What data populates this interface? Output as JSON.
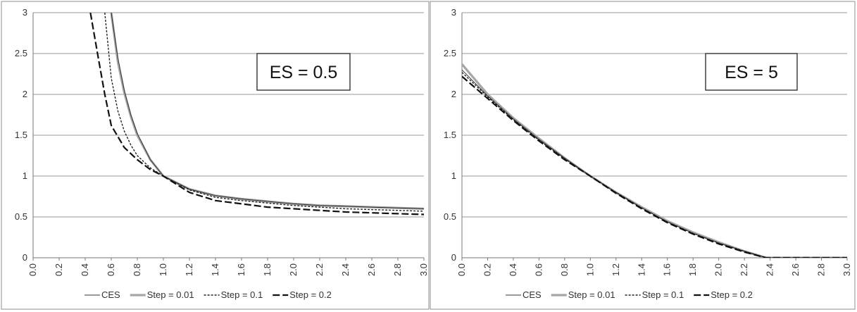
{
  "chart_data": [
    {
      "type": "line",
      "annotation": "ES = 0.5",
      "xlim": [
        0,
        3
      ],
      "ylim": [
        0,
        3
      ],
      "x_ticks": [
        "0.0",
        "0.2",
        "0.4",
        "0.6",
        "0.8",
        "1.0",
        "1.2",
        "1.4",
        "1.6",
        "1.8",
        "2.0",
        "2.2",
        "2.4",
        "2.6",
        "2.8",
        "3.0"
      ],
      "y_ticks": [
        "0",
        "0.5",
        "1",
        "1.5",
        "2",
        "2.5",
        "3"
      ],
      "grid": "horizontal",
      "legend_position": "bottom",
      "series": [
        {
          "name": "CES",
          "style": "thin-solid",
          "color": "#333333",
          "x": [
            0.6,
            0.65,
            0.7,
            0.75,
            0.8,
            0.9,
            1.0,
            1.2,
            1.4,
            1.6,
            1.8,
            2.0,
            2.2,
            2.4,
            2.6,
            2.8,
            3.0
          ],
          "y": [
            3.0,
            2.45,
            2.05,
            1.75,
            1.52,
            1.2,
            1.0,
            0.84,
            0.76,
            0.72,
            0.69,
            0.66,
            0.64,
            0.63,
            0.62,
            0.61,
            0.6
          ]
        },
        {
          "name": "Step = 0.01",
          "style": "thick-solid",
          "color": "#a6a6a6",
          "x": [
            0.6,
            0.65,
            0.7,
            0.75,
            0.8,
            0.9,
            1.0,
            1.2,
            1.4,
            1.6,
            1.8,
            2.0,
            2.2,
            2.4,
            2.6,
            2.8,
            3.0
          ],
          "y": [
            3.0,
            2.4,
            2.02,
            1.73,
            1.5,
            1.2,
            1.0,
            0.84,
            0.76,
            0.72,
            0.69,
            0.66,
            0.64,
            0.63,
            0.62,
            0.61,
            0.6
          ]
        },
        {
          "name": "Step = 0.1",
          "style": "short-dash",
          "color": "#222222",
          "x": [
            0.55,
            0.6,
            0.65,
            0.7,
            0.75,
            0.8,
            0.9,
            1.0,
            1.2,
            1.4,
            1.6,
            1.8,
            2.0,
            2.2,
            2.4,
            2.6,
            2.8,
            3.0
          ],
          "y": [
            3.0,
            2.2,
            1.8,
            1.55,
            1.38,
            1.25,
            1.1,
            1.0,
            0.83,
            0.74,
            0.7,
            0.67,
            0.64,
            0.62,
            0.6,
            0.59,
            0.58,
            0.57
          ]
        },
        {
          "name": "Step = 0.2",
          "style": "long-dash",
          "color": "#111111",
          "x": [
            0.44,
            0.5,
            0.55,
            0.6,
            0.7,
            0.8,
            0.9,
            1.0,
            1.2,
            1.4,
            1.6,
            1.8,
            2.0,
            2.2,
            2.4,
            2.6,
            2.8,
            3.0
          ],
          "y": [
            3.0,
            2.45,
            2.0,
            1.62,
            1.35,
            1.2,
            1.08,
            1.0,
            0.8,
            0.7,
            0.66,
            0.62,
            0.6,
            0.58,
            0.56,
            0.55,
            0.54,
            0.53
          ]
        }
      ]
    },
    {
      "type": "line",
      "annotation": "ES = 5",
      "xlim": [
        0,
        3
      ],
      "ylim": [
        0,
        3
      ],
      "x_ticks": [
        "0.0",
        "0.2",
        "0.4",
        "0.6",
        "0.8",
        "1.0",
        "1.2",
        "1.4",
        "1.6",
        "1.8",
        "2.0",
        "2.2",
        "2.4",
        "2.6",
        "2.8",
        "3.0"
      ],
      "y_ticks": [
        "0",
        "0.5",
        "1",
        "1.5",
        "2",
        "2.5",
        "3"
      ],
      "grid": "horizontal",
      "legend_position": "bottom",
      "series": [
        {
          "name": "CES",
          "style": "thin-solid",
          "color": "#333333",
          "x": [
            0.0,
            0.2,
            0.4,
            0.6,
            0.8,
            1.0,
            1.2,
            1.4,
            1.6,
            1.8,
            2.0,
            2.2,
            2.37,
            2.6,
            2.8,
            3.0
          ],
          "y": [
            2.3,
            1.98,
            1.7,
            1.45,
            1.22,
            1.0,
            0.8,
            0.61,
            0.44,
            0.3,
            0.18,
            0.08,
            0.0,
            0.0,
            0.0,
            0.0
          ]
        },
        {
          "name": "Step = 0.01",
          "style": "thick-solid",
          "color": "#a6a6a6",
          "x": [
            0.0,
            0.2,
            0.4,
            0.6,
            0.8,
            1.0,
            1.2,
            1.4,
            1.6,
            1.8,
            2.0,
            2.2,
            2.37,
            2.6,
            2.8,
            3.0
          ],
          "y": [
            2.37,
            2.0,
            1.71,
            1.46,
            1.22,
            1.0,
            0.8,
            0.62,
            0.45,
            0.31,
            0.19,
            0.08,
            0.0,
            0.0,
            0.0,
            0.0
          ]
        },
        {
          "name": "Step = 0.1",
          "style": "short-dash",
          "color": "#222222",
          "x": [
            0.0,
            0.2,
            0.4,
            0.6,
            0.8,
            1.0,
            1.2,
            1.4,
            1.6,
            1.8,
            2.0,
            2.2,
            2.37,
            2.6,
            2.8,
            3.0
          ],
          "y": [
            2.27,
            1.97,
            1.69,
            1.44,
            1.21,
            1.0,
            0.8,
            0.61,
            0.44,
            0.3,
            0.18,
            0.08,
            0.0,
            0.0,
            0.0,
            0.0
          ]
        },
        {
          "name": "Step = 0.2",
          "style": "long-dash",
          "color": "#111111",
          "x": [
            0.0,
            0.2,
            0.4,
            0.6,
            0.8,
            1.0,
            1.2,
            1.4,
            1.6,
            1.8,
            2.0,
            2.2,
            2.37,
            2.6,
            2.8,
            3.0
          ],
          "y": [
            2.22,
            1.95,
            1.68,
            1.43,
            1.2,
            1.0,
            0.79,
            0.6,
            0.43,
            0.29,
            0.17,
            0.07,
            0.0,
            0.0,
            0.0,
            0.0
          ]
        }
      ]
    }
  ]
}
